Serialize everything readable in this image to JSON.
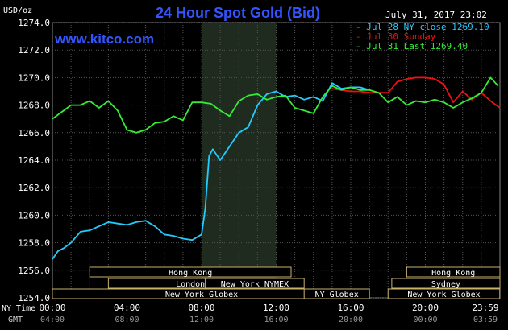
{
  "chart_data": {
    "type": "line",
    "title": "24 Hour Spot Gold (Bid)",
    "watermark": "www.kitco.com",
    "timestamp": "July 31, 2017 23:02",
    "ylabel": "USD/oz",
    "ylim": [
      1254.0,
      1274.0
    ],
    "yticks": [
      "1254.0",
      "1256.0",
      "1258.0",
      "1260.0",
      "1262.0",
      "1264.0",
      "1266.0",
      "1268.0",
      "1270.0",
      "1272.0",
      "1274.0"
    ],
    "xlim": [
      0,
      24
    ],
    "xticks_ny": [
      "00:00",
      "04:00",
      "08:00",
      "12:00",
      "16:00",
      "20:00",
      "23:59"
    ],
    "xticks_gmt": [
      "04:00",
      "08:00",
      "12:00",
      "16:00",
      "20:00",
      "00:00",
      "03:59"
    ],
    "x_row_labels": {
      "ny": "NY Time",
      "gmt": "GMT"
    },
    "highlight_hours": [
      8,
      12
    ],
    "grid": true,
    "legend_position": "top-right",
    "markets": [
      {
        "name": "Hong Kong",
        "start": 2.0,
        "end": 12.8
      },
      {
        "name": "London",
        "start": 3.0,
        "end": 11.8
      },
      {
        "name": "New York Globex",
        "start": 0.0,
        "end": 16.0
      },
      {
        "name": "New York NYMEX",
        "start": 8.2,
        "end": 13.5
      },
      {
        "name": "NY Globex",
        "start": 13.5,
        "end": 17.0
      },
      {
        "name": "Hong Kong",
        "start": 19.0,
        "end": 24.0
      },
      {
        "name": "Sydney",
        "start": 18.2,
        "end": 24.0
      },
      {
        "name": "New York Globex",
        "start": 18.0,
        "end": 23.99
      }
    ],
    "series": [
      {
        "name": "Jul 28 NY close 1269.10",
        "color": "#22ccff",
        "x": [
          0,
          0.3,
          0.6,
          1,
          1.5,
          2,
          2.5,
          3,
          3.5,
          4,
          4.5,
          5,
          5.5,
          6,
          6.5,
          7,
          7.5,
          8,
          8.2,
          8.4,
          8.6,
          9,
          9.5,
          10,
          10.5,
          11,
          11.5,
          12,
          12.5,
          13,
          13.5,
          14,
          14.5,
          15,
          15.5,
          16,
          16.5,
          17
        ],
        "values": [
          1256.8,
          1257.4,
          1257.6,
          1258.0,
          1258.8,
          1258.9,
          1259.2,
          1259.5,
          1259.4,
          1259.3,
          1259.5,
          1259.6,
          1259.2,
          1258.6,
          1258.5,
          1258.3,
          1258.2,
          1258.6,
          1260.5,
          1264.3,
          1264.8,
          1264.0,
          1265.0,
          1266.0,
          1266.4,
          1268.0,
          1268.8,
          1269.0,
          1268.6,
          1268.7,
          1268.4,
          1268.6,
          1268.3,
          1269.6,
          1269.2,
          1269.3,
          1269.3,
          1269.1
        ]
      },
      {
        "name": "Jul 30 Sunday",
        "color": "#ee1111",
        "x": [
          15,
          15.5,
          16,
          16.5,
          17,
          17.5,
          18,
          18.5,
          19,
          19.5,
          20,
          20.5,
          21,
          21.5,
          22,
          22.5,
          23,
          23.5,
          24
        ],
        "values": [
          1269.2,
          1269.1,
          1269.0,
          1269.0,
          1268.9,
          1268.9,
          1268.9,
          1269.7,
          1269.9,
          1270.0,
          1270.0,
          1269.9,
          1269.5,
          1268.2,
          1269.0,
          1268.4,
          1268.9,
          1268.3,
          1267.8
        ]
      },
      {
        "name": "Jul 31 Last 1269.40",
        "color": "#33ee33",
        "x": [
          0,
          0.5,
          1,
          1.5,
          2,
          2.5,
          3,
          3.5,
          4,
          4.5,
          5,
          5.5,
          6,
          6.5,
          7,
          7.5,
          8,
          8.5,
          9,
          9.5,
          10,
          10.5,
          11,
          11.5,
          12,
          12.5,
          13,
          13.5,
          14,
          14.5,
          15,
          15.5,
          16,
          16.5,
          17,
          17.5,
          18,
          18.5,
          19,
          19.5,
          20,
          20.5,
          21,
          21.5,
          22,
          22.5,
          23,
          23.5,
          23.9
        ],
        "values": [
          1267.0,
          1267.5,
          1268.0,
          1268.0,
          1268.3,
          1267.8,
          1268.3,
          1267.6,
          1266.2,
          1266.0,
          1266.2,
          1266.7,
          1266.8,
          1267.2,
          1266.9,
          1268.2,
          1268.2,
          1268.1,
          1267.6,
          1267.2,
          1268.3,
          1268.7,
          1268.8,
          1268.4,
          1268.6,
          1268.7,
          1267.8,
          1267.6,
          1267.4,
          1268.6,
          1269.4,
          1269.1,
          1269.3,
          1269.1,
          1269.1,
          1268.9,
          1268.2,
          1268.6,
          1268.0,
          1268.3,
          1268.2,
          1268.4,
          1268.2,
          1267.8,
          1268.2,
          1268.5,
          1268.9,
          1270.0,
          1269.4
        ]
      }
    ]
  }
}
